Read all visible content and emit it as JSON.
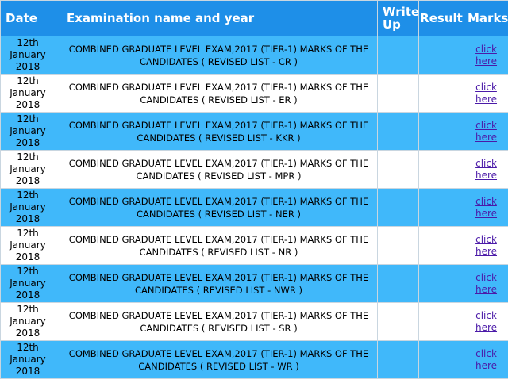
{
  "table": {
    "headers": {
      "date": "Date",
      "exam": "Examination name and year",
      "writeup": "Write Up",
      "result": "Result",
      "marks": "Marks"
    },
    "rows": [
      {
        "date": "12th January 2018",
        "exam": "COMBINED GRADUATE LEVEL EXAM,2017 (TIER-1) MARKS OF THE CANDIDATES ( REVISED LIST - CR )",
        "writeup": "",
        "result": "",
        "marks_link": "click here"
      },
      {
        "date": "12th January 2018",
        "exam": "COMBINED GRADUATE LEVEL EXAM,2017 (TIER-1) MARKS OF THE CANDIDATES ( REVISED LIST - ER )",
        "writeup": "",
        "result": "",
        "marks_link": "click here"
      },
      {
        "date": "12th January 2018",
        "exam": "COMBINED GRADUATE LEVEL EXAM,2017 (TIER-1) MARKS OF THE CANDIDATES ( REVISED LIST - KKR )",
        "writeup": "",
        "result": "",
        "marks_link": "click here"
      },
      {
        "date": "12th January 2018",
        "exam": "COMBINED GRADUATE LEVEL EXAM,2017 (TIER-1) MARKS OF THE CANDIDATES ( REVISED LIST - MPR )",
        "writeup": "",
        "result": "",
        "marks_link": "click here"
      },
      {
        "date": "12th January 2018",
        "exam": "COMBINED GRADUATE LEVEL EXAM,2017 (TIER-1) MARKS OF THE CANDIDATES ( REVISED LIST - NER )",
        "writeup": "",
        "result": "",
        "marks_link": "click here"
      },
      {
        "date": "12th January 2018",
        "exam": "COMBINED GRADUATE LEVEL EXAM,2017 (TIER-1) MARKS OF THE CANDIDATES ( REVISED LIST - NR )",
        "writeup": "",
        "result": "",
        "marks_link": "click here"
      },
      {
        "date": "12th January 2018",
        "exam": "COMBINED GRADUATE LEVEL EXAM,2017 (TIER-1) MARKS OF THE CANDIDATES ( REVISED LIST - NWR )",
        "writeup": "",
        "result": "",
        "marks_link": "click here"
      },
      {
        "date": "12th January 2018",
        "exam": "COMBINED GRADUATE LEVEL EXAM,2017 (TIER-1) MARKS OF THE CANDIDATES ( REVISED LIST - SR )",
        "writeup": "",
        "result": "",
        "marks_link": "click here"
      },
      {
        "date": "12th January 2018",
        "exam": "COMBINED GRADUATE LEVEL EXAM,2017 (TIER-1) MARKS OF THE CANDIDATES ( REVISED LIST - WR )",
        "writeup": "",
        "result": "",
        "marks_link": "click here"
      }
    ]
  },
  "colors": {
    "header_bg": "#1e8fe8",
    "row_blue": "#40b8fa",
    "row_white": "#ffffff",
    "link": "#4b1aa8"
  }
}
